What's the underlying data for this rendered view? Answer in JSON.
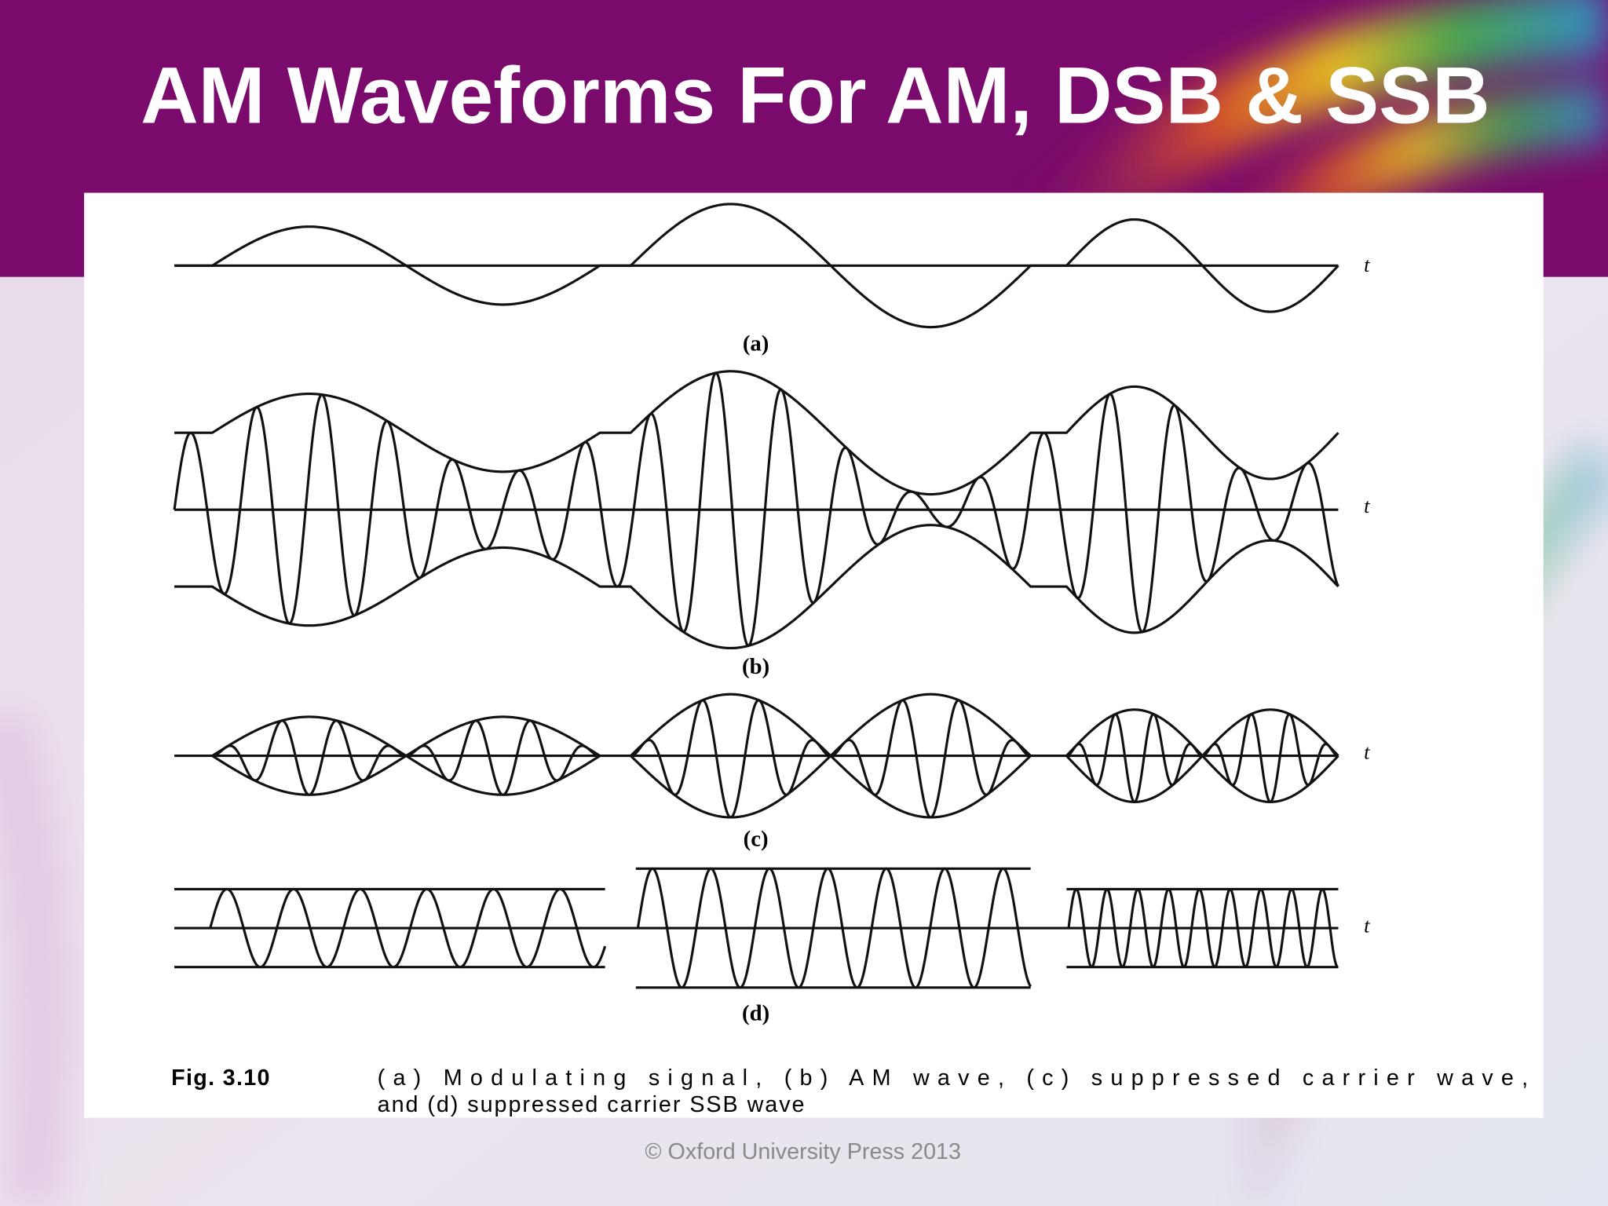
{
  "title": "AM Waveforms For AM, DSB & SSB",
  "figure": {
    "panels": [
      {
        "label": "(a)",
        "axis_label": "t"
      },
      {
        "label": "(b)",
        "axis_label": "t"
      },
      {
        "label": "(c)",
        "axis_label": "t"
      },
      {
        "label": "(d)",
        "axis_label": "t"
      }
    ],
    "caption": {
      "number": "Fig. 3.10",
      "lines": [
        "(a) Modulating signal, (b) AM wave, (c) suppressed carrier wave,",
        "and (d) suppressed carrier SSB wave"
      ]
    }
  },
  "footer": "© Oxford University Press 2013"
}
